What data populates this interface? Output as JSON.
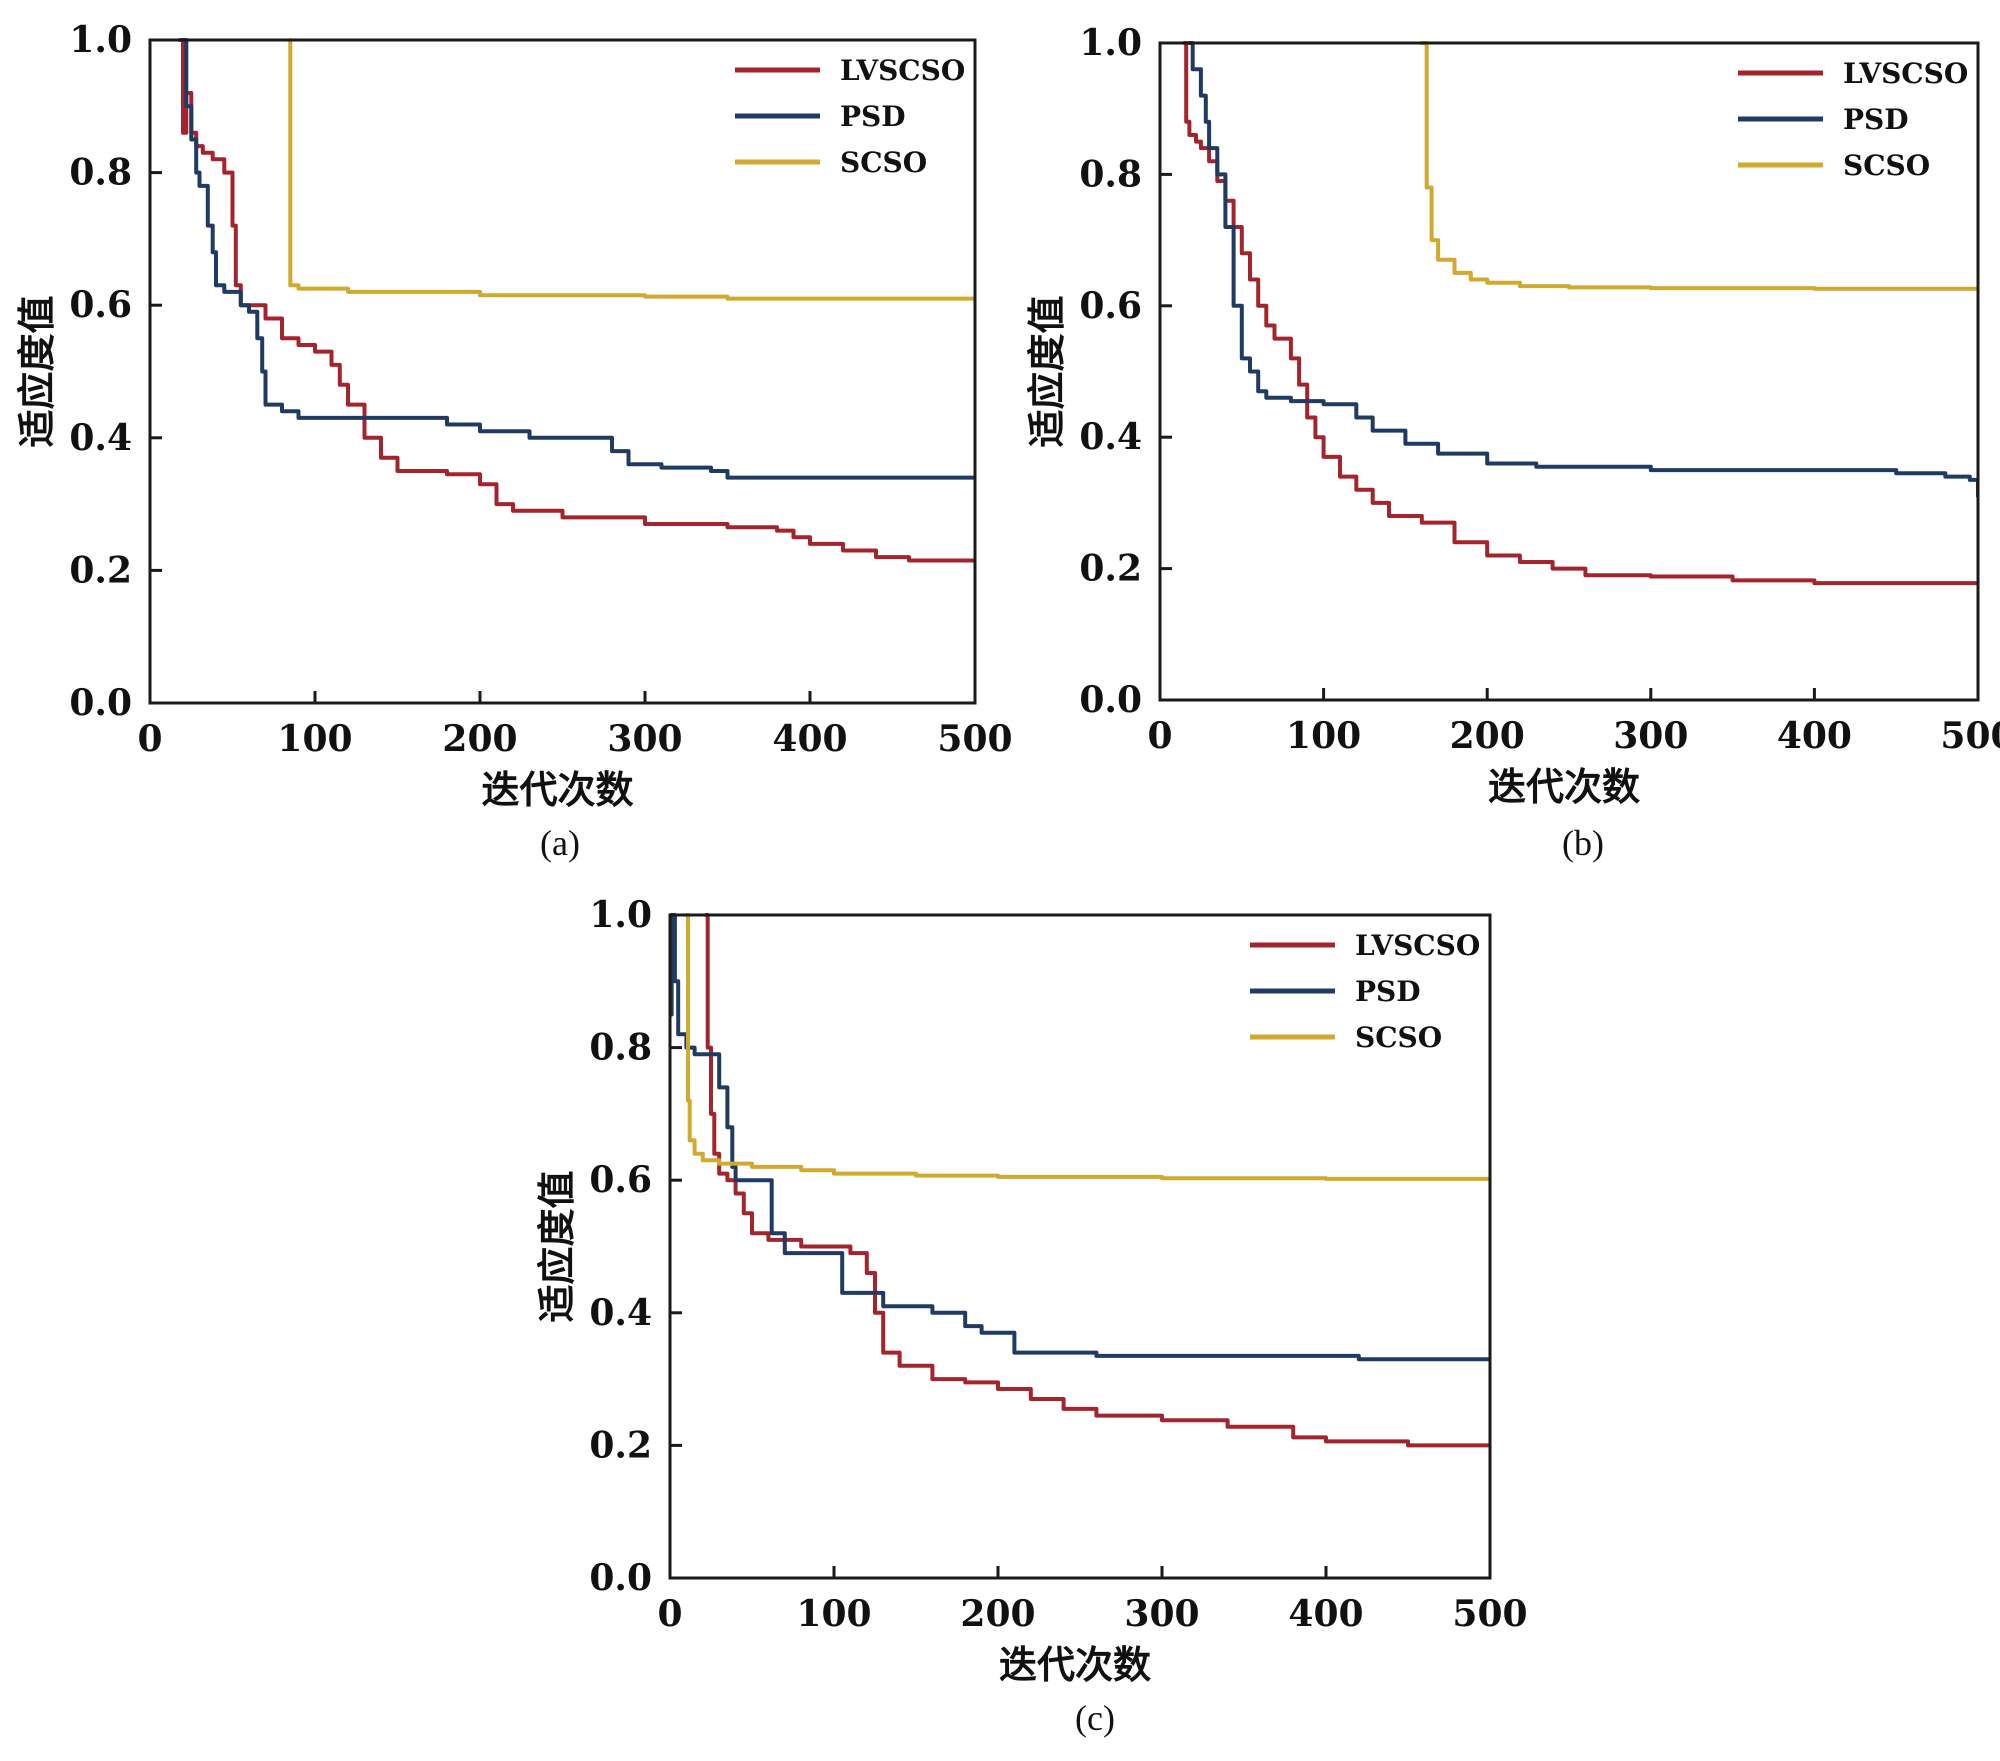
{
  "figure": {
    "captions": [
      "(a)",
      "(b)",
      "(c)"
    ]
  },
  "colors": {
    "LVSCSO": "#a3242c",
    "PSD": "#1f3a63",
    "SCSO": "#cfaa2e"
  },
  "chart_data": [
    {
      "id": "a",
      "type": "line",
      "caption": "(a)",
      "xlabel": "迭代次数",
      "ylabel": "适应度值",
      "xlim": [
        0,
        500
      ],
      "ylim": [
        0.0,
        1.0
      ],
      "xticks": [
        "0",
        "100",
        "200",
        "300",
        "400",
        "500"
      ],
      "yticks": [
        "0.0",
        "0.2",
        "0.4",
        "0.6",
        "0.8",
        "1.0"
      ],
      "legend": [
        "LVSCSO",
        "PSD",
        "SCSO"
      ],
      "legend_position": "top-right",
      "series": [
        {
          "name": "LVSCSO",
          "x": [
            18,
            20,
            22,
            25,
            28,
            32,
            38,
            45,
            50,
            52,
            55,
            60,
            70,
            80,
            90,
            100,
            110,
            115,
            120,
            130,
            140,
            150,
            180,
            200,
            210,
            220,
            250,
            300,
            350,
            380,
            390,
            400,
            420,
            440,
            460,
            500
          ],
          "y": [
            1.0,
            0.86,
            0.92,
            0.86,
            0.84,
            0.83,
            0.82,
            0.8,
            0.72,
            0.63,
            0.6,
            0.6,
            0.58,
            0.55,
            0.54,
            0.53,
            0.51,
            0.48,
            0.45,
            0.4,
            0.37,
            0.35,
            0.345,
            0.33,
            0.3,
            0.29,
            0.28,
            0.27,
            0.265,
            0.26,
            0.25,
            0.24,
            0.23,
            0.22,
            0.215,
            0.215
          ]
        },
        {
          "name": "PSD",
          "x": [
            20,
            22,
            25,
            28,
            30,
            35,
            38,
            40,
            45,
            50,
            55,
            60,
            65,
            68,
            70,
            80,
            90,
            100,
            180,
            200,
            230,
            280,
            290,
            310,
            340,
            350,
            500
          ],
          "y": [
            1.0,
            0.9,
            0.85,
            0.8,
            0.78,
            0.72,
            0.68,
            0.63,
            0.62,
            0.62,
            0.6,
            0.59,
            0.55,
            0.5,
            0.45,
            0.44,
            0.43,
            0.43,
            0.42,
            0.41,
            0.4,
            0.38,
            0.36,
            0.355,
            0.35,
            0.34,
            0.34
          ]
        },
        {
          "name": "SCSO",
          "x": [
            85,
            85,
            90,
            120,
            200,
            300,
            350,
            500
          ],
          "y": [
            1.0,
            0.63,
            0.625,
            0.62,
            0.615,
            0.613,
            0.61,
            0.608
          ]
        }
      ]
    },
    {
      "id": "b",
      "type": "line",
      "caption": "(b)",
      "xlabel": "迭代次数",
      "ylabel": "适应度值",
      "xlim": [
        0,
        500
      ],
      "ylim": [
        0.0,
        1.0
      ],
      "xticks": [
        "0",
        "100",
        "200",
        "300",
        "400",
        "500"
      ],
      "yticks": [
        "0.0",
        "0.2",
        "0.4",
        "0.6",
        "0.8",
        "1.0"
      ],
      "legend": [
        "LVSCSO",
        "PSD",
        "SCSO"
      ],
      "legend_position": "top-right",
      "series": [
        {
          "name": "LVSCSO",
          "x": [
            15,
            16,
            18,
            22,
            25,
            30,
            35,
            40,
            45,
            50,
            55,
            60,
            65,
            70,
            80,
            85,
            90,
            95,
            100,
            110,
            120,
            130,
            140,
            160,
            180,
            200,
            220,
            240,
            260,
            300,
            350,
            400,
            500
          ],
          "y": [
            1.0,
            0.88,
            0.86,
            0.85,
            0.84,
            0.82,
            0.79,
            0.76,
            0.72,
            0.68,
            0.64,
            0.6,
            0.57,
            0.55,
            0.52,
            0.48,
            0.43,
            0.4,
            0.37,
            0.34,
            0.32,
            0.3,
            0.28,
            0.27,
            0.24,
            0.22,
            0.21,
            0.2,
            0.19,
            0.188,
            0.182,
            0.178,
            0.178
          ]
        },
        {
          "name": "PSD",
          "x": [
            18,
            20,
            25,
            28,
            30,
            35,
            40,
            45,
            50,
            55,
            60,
            65,
            70,
            80,
            100,
            120,
            130,
            150,
            170,
            200,
            230,
            300,
            400,
            450,
            480,
            495,
            500
          ],
          "y": [
            1.0,
            0.96,
            0.92,
            0.88,
            0.84,
            0.8,
            0.72,
            0.6,
            0.52,
            0.5,
            0.47,
            0.46,
            0.46,
            0.455,
            0.45,
            0.43,
            0.41,
            0.39,
            0.375,
            0.36,
            0.355,
            0.35,
            0.35,
            0.345,
            0.34,
            0.335,
            0.31
          ]
        },
        {
          "name": "SCSO",
          "x": [
            160,
            163,
            166,
            170,
            180,
            190,
            200,
            220,
            250,
            300,
            400,
            500
          ],
          "y": [
            1.0,
            0.78,
            0.7,
            0.67,
            0.65,
            0.64,
            0.635,
            0.63,
            0.628,
            0.627,
            0.626,
            0.626
          ]
        }
      ]
    },
    {
      "id": "c",
      "type": "line",
      "caption": "(c)",
      "xlabel": "迭代次数",
      "ylabel": "适应度值",
      "xlim": [
        0,
        500
      ],
      "ylim": [
        0.0,
        1.0
      ],
      "xticks": [
        "0",
        "100",
        "200",
        "300",
        "400",
        "500"
      ],
      "yticks": [
        "0.0",
        "0.2",
        "0.4",
        "0.6",
        "0.8",
        "1.0"
      ],
      "legend": [
        "LVSCSO",
        "PSD",
        "SCSO"
      ],
      "legend_position": "top-right",
      "series": [
        {
          "name": "LVSCSO",
          "x": [
            22,
            23,
            25,
            27,
            30,
            35,
            40,
            45,
            50,
            60,
            80,
            100,
            110,
            120,
            125,
            130,
            140,
            160,
            180,
            200,
            220,
            240,
            260,
            300,
            340,
            380,
            400,
            450,
            500
          ],
          "y": [
            1.0,
            0.8,
            0.7,
            0.64,
            0.61,
            0.6,
            0.58,
            0.55,
            0.52,
            0.51,
            0.5,
            0.5,
            0.49,
            0.46,
            0.4,
            0.34,
            0.32,
            0.3,
            0.295,
            0.285,
            0.27,
            0.255,
            0.245,
            0.238,
            0.228,
            0.212,
            0.206,
            0.2,
            0.2
          ]
        },
        {
          "name": "PSD",
          "x": [
            0,
            1,
            3,
            5,
            10,
            15,
            25,
            30,
            35,
            38,
            40,
            60,
            62,
            70,
            100,
            105,
            130,
            160,
            180,
            190,
            210,
            260,
            390,
            420,
            500
          ],
          "y": [
            0.85,
            1.0,
            0.9,
            0.82,
            0.8,
            0.79,
            0.79,
            0.74,
            0.68,
            0.62,
            0.6,
            0.6,
            0.52,
            0.49,
            0.49,
            0.43,
            0.41,
            0.4,
            0.38,
            0.37,
            0.34,
            0.335,
            0.335,
            0.33,
            0.33
          ]
        },
        {
          "name": "SCSO",
          "x": [
            10,
            11,
            12,
            15,
            20,
            30,
            50,
            80,
            100,
            150,
            200,
            300,
            400,
            500
          ],
          "y": [
            1.0,
            0.72,
            0.66,
            0.64,
            0.63,
            0.625,
            0.62,
            0.615,
            0.61,
            0.607,
            0.605,
            0.603,
            0.602,
            0.602
          ]
        }
      ]
    }
  ]
}
